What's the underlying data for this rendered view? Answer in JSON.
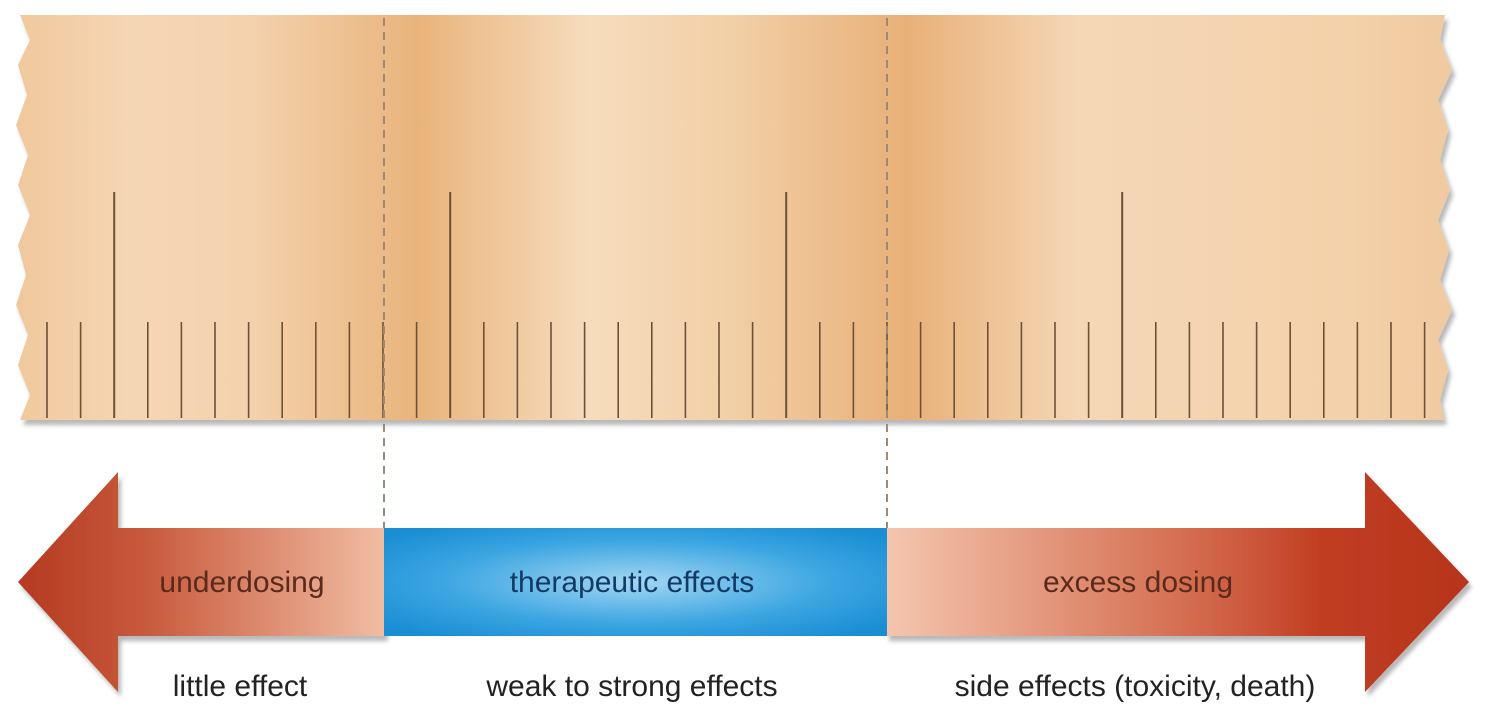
{
  "diagram": {
    "ruler": {
      "minor_ticks_per_major": 5,
      "dividers": 2
    },
    "zones": [
      {
        "id": "under",
        "band_label": "underdosing",
        "caption": "little effect"
      },
      {
        "id": "thera",
        "band_label": "therapeutic effects",
        "caption": "weak to strong effects"
      },
      {
        "id": "excess",
        "band_label": "excess dosing",
        "caption": "side effects (toxicity, death)"
      }
    ]
  },
  "colors": {
    "ruler_light": "#f6d9b8",
    "ruler_dark": "#e7ad72",
    "arrow_dark": "#b83a20",
    "arrow_light": "#f0b89a",
    "therapeutic_dark": "#1b8fd4",
    "therapeutic_light": "#8fcdee",
    "tick": "#6d5038",
    "divider": "#9c8a78"
  }
}
